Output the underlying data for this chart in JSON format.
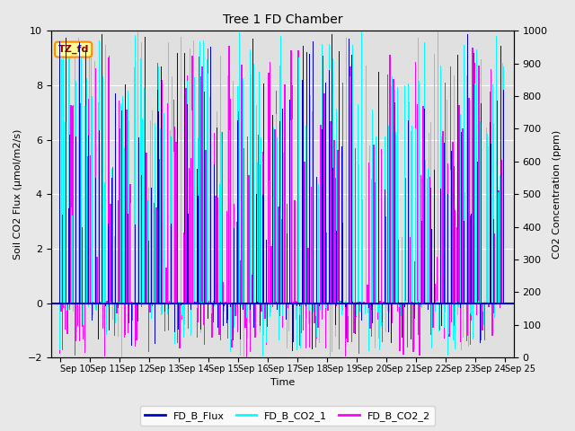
{
  "title": "Tree 1 FD Chamber",
  "xlabel": "Time",
  "ylabel_left": "Soil CO2 Flux (μmol/m2/s)",
  "ylabel_right": "CO2 Concentration (ppm)",
  "ylim_left": [
    -2,
    10
  ],
  "ylim_right": [
    0,
    1000
  ],
  "yticks_left": [
    -2,
    0,
    2,
    4,
    6,
    8,
    10
  ],
  "yticks_right": [
    0,
    100,
    200,
    300,
    400,
    500,
    600,
    700,
    800,
    900,
    1000
  ],
  "xtick_labels": [
    "Sep 10",
    "Sep 11",
    "Sep 12",
    "Sep 13",
    "Sep 14",
    "Sep 15",
    "Sep 16",
    "Sep 17",
    "Sep 18",
    "Sep 19",
    "Sep 20",
    "Sep 21",
    "Sep 22",
    "Sep 23",
    "Sep 24",
    "Sep 25"
  ],
  "fig_bg_color": "#e8e8e8",
  "plot_bg_color": "#e0e0e0",
  "flux_color": "#0000CC",
  "co2_1_color": "#00FFFF",
  "co2_2_color": "#FF00FF",
  "annotation_text": "TZ_fd",
  "annotation_bg": "#FFFF99",
  "annotation_border": "#FF8C00",
  "legend_labels": [
    "FD_B_Flux",
    "FD_B_CO2_1",
    "FD_B_CO2_2"
  ],
  "num_days": 15,
  "measurements_per_day": 24,
  "seed": 42
}
